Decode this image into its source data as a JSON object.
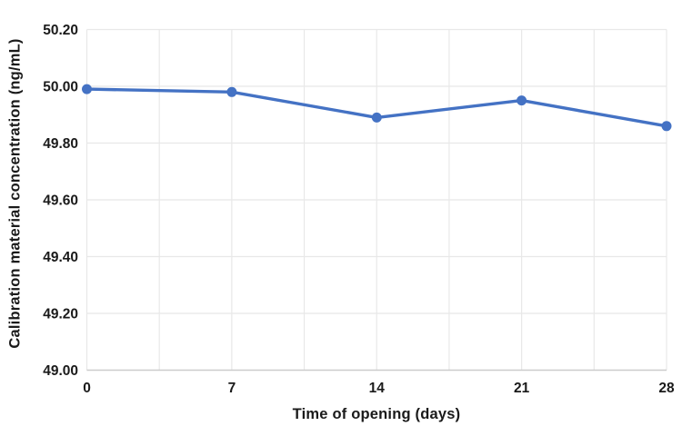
{
  "chart_data": {
    "type": "line",
    "title": "",
    "xlabel": "Time of opening (days)",
    "ylabel": "Calibration material concentration (ng/mL)",
    "x": [
      0,
      7,
      14,
      21,
      28
    ],
    "series": [
      {
        "name": "Calibration material concentration (ng/mL)",
        "values": [
          49.99,
          49.98,
          49.89,
          49.95,
          49.86
        ]
      }
    ],
    "xlim": [
      0,
      28
    ],
    "ylim": [
      49.0,
      50.2
    ],
    "xticks": [
      0,
      7,
      14,
      21,
      28
    ],
    "yticks": [
      49.0,
      49.2,
      49.4,
      49.6,
      49.8,
      50.0,
      50.2
    ],
    "ytick_decimals": 2,
    "x_gridline_step": 3.5,
    "grid": "on",
    "legend": "none",
    "colors": {
      "line": "#4472C4",
      "marker": "#4472C4",
      "gridline": "#E8E8E8",
      "axis_line": "#CBCBCB",
      "text": "#1A1A1A",
      "background": "#FFFFFF"
    }
  }
}
